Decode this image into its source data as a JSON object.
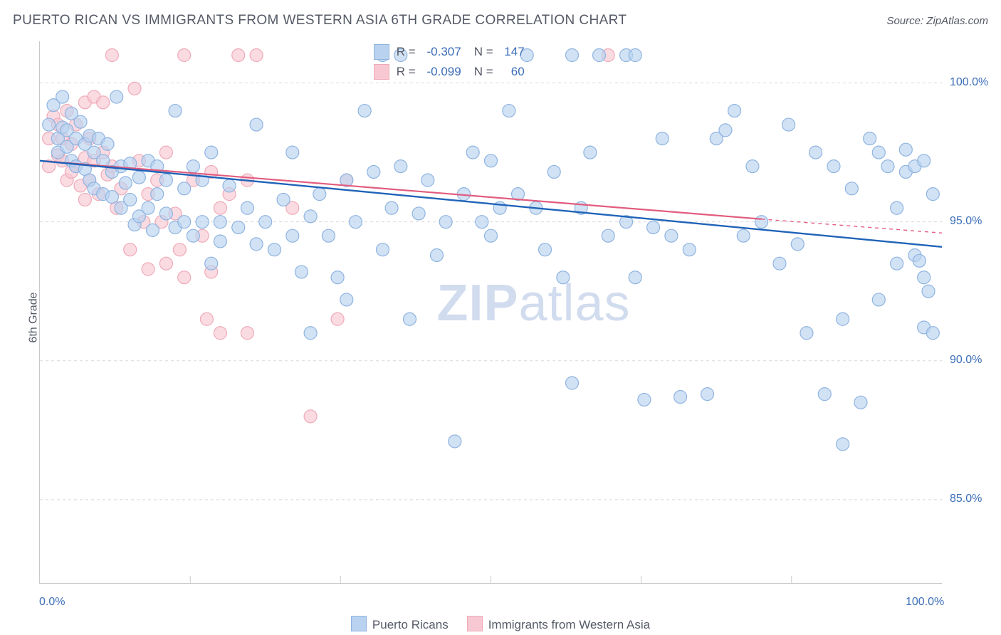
{
  "title": "PUERTO RICAN VS IMMIGRANTS FROM WESTERN ASIA 6TH GRADE CORRELATION CHART",
  "source": "Source: ZipAtlas.com",
  "yaxis_label": "6th Grade",
  "watermark_bold": "ZIP",
  "watermark_rest": "atlas",
  "chart": {
    "type": "scatter-with-regression",
    "xlim": [
      0,
      100
    ],
    "ylim": [
      82,
      101.5
    ],
    "x_ticks": [
      0,
      100
    ],
    "x_tick_labels": [
      "0.0%",
      "100.0%"
    ],
    "x_minor_ticks": [
      16.67,
      33.33,
      50,
      66.67,
      83.33
    ],
    "y_ticks": [
      85,
      90,
      95,
      100
    ],
    "y_tick_labels": [
      "85.0%",
      "90.0%",
      "95.0%",
      "100.0%"
    ],
    "gridline_color": "#d8d8d8",
    "gridline_dash": "4 4",
    "background_color": "#ffffff",
    "marker_radius": 9,
    "marker_stroke_width": 1.2,
    "series": [
      {
        "name": "Puerto Ricans",
        "fill": "#b9d2ef",
        "stroke": "#8fb4e0",
        "fill_opacity": 0.65,
        "R": "-0.307",
        "N": "147",
        "regression": {
          "x1": 0,
          "y1": 97.2,
          "x2": 100,
          "y2": 94.1,
          "color": "#1f63b8",
          "width": 2.4,
          "dash_ext": false
        },
        "points": [
          [
            1,
            98.5
          ],
          [
            1.5,
            99.2
          ],
          [
            2,
            98.0
          ],
          [
            2,
            97.5
          ],
          [
            2.5,
            98.4
          ],
          [
            2.5,
            99.5
          ],
          [
            3,
            98.3
          ],
          [
            3,
            97.7
          ],
          [
            3.5,
            98.9
          ],
          [
            3.5,
            97.2
          ],
          [
            4,
            98.0
          ],
          [
            4,
            97.0
          ],
          [
            4.5,
            98.6
          ],
          [
            5,
            97.8
          ],
          [
            5,
            96.9
          ],
          [
            5.5,
            98.1
          ],
          [
            5.5,
            96.5
          ],
          [
            6,
            97.5
          ],
          [
            6,
            96.2
          ],
          [
            6.5,
            98.0
          ],
          [
            7,
            97.2
          ],
          [
            7,
            96.0
          ],
          [
            7.5,
            97.8
          ],
          [
            8,
            96.8
          ],
          [
            8,
            95.9
          ],
          [
            8.5,
            99.5
          ],
          [
            9,
            97.0
          ],
          [
            9,
            95.5
          ],
          [
            9.5,
            96.4
          ],
          [
            10,
            97.1
          ],
          [
            10,
            95.8
          ],
          [
            10.5,
            94.9
          ],
          [
            11,
            96.6
          ],
          [
            11,
            95.2
          ],
          [
            12,
            97.2
          ],
          [
            12,
            95.5
          ],
          [
            12.5,
            94.7
          ],
          [
            13,
            96.0
          ],
          [
            13,
            97.0
          ],
          [
            14,
            95.3
          ],
          [
            14,
            96.5
          ],
          [
            15,
            99.0
          ],
          [
            15,
            94.8
          ],
          [
            16,
            96.2
          ],
          [
            16,
            95.0
          ],
          [
            17,
            97.0
          ],
          [
            17,
            94.5
          ],
          [
            18,
            96.5
          ],
          [
            18,
            95.0
          ],
          [
            19,
            97.5
          ],
          [
            19,
            93.5
          ],
          [
            20,
            95.0
          ],
          [
            20,
            94.3
          ],
          [
            21,
            96.3
          ],
          [
            22,
            94.8
          ],
          [
            23,
            95.5
          ],
          [
            24,
            94.2
          ],
          [
            24,
            98.5
          ],
          [
            25,
            95.0
          ],
          [
            26,
            94.0
          ],
          [
            27,
            95.8
          ],
          [
            28,
            94.5
          ],
          [
            28,
            97.5
          ],
          [
            29,
            93.2
          ],
          [
            30,
            95.2
          ],
          [
            30,
            91.0
          ],
          [
            31,
            96.0
          ],
          [
            32,
            94.5
          ],
          [
            33,
            93.0
          ],
          [
            34,
            92.2
          ],
          [
            34,
            96.5
          ],
          [
            35,
            95.0
          ],
          [
            36,
            99.0
          ],
          [
            37,
            96.8
          ],
          [
            38,
            94.0
          ],
          [
            38,
            101
          ],
          [
            39,
            95.5
          ],
          [
            40,
            97.0
          ],
          [
            40,
            101
          ],
          [
            41,
            91.5
          ],
          [
            42,
            95.3
          ],
          [
            43,
            96.5
          ],
          [
            44,
            93.8
          ],
          [
            45,
            95.0
          ],
          [
            46,
            87.1
          ],
          [
            47,
            96.0
          ],
          [
            48,
            97.5
          ],
          [
            49,
            95.0
          ],
          [
            50,
            94.5
          ],
          [
            50,
            97.2
          ],
          [
            51,
            95.5
          ],
          [
            52,
            99.0
          ],
          [
            53,
            96.0
          ],
          [
            54,
            101
          ],
          [
            55,
            95.5
          ],
          [
            56,
            94.0
          ],
          [
            57,
            96.8
          ],
          [
            58,
            93.0
          ],
          [
            59,
            89.2
          ],
          [
            59,
            101
          ],
          [
            60,
            95.5
          ],
          [
            61,
            97.5
          ],
          [
            62,
            101
          ],
          [
            63,
            94.5
          ],
          [
            65,
            95.0
          ],
          [
            65,
            101
          ],
          [
            66,
            101
          ],
          [
            66,
            93.0
          ],
          [
            67,
            88.6
          ],
          [
            68,
            94.8
          ],
          [
            69,
            98.0
          ],
          [
            70,
            94.5
          ],
          [
            71,
            88.7
          ],
          [
            72,
            94.0
          ],
          [
            74,
            88.8
          ],
          [
            75,
            98.0
          ],
          [
            76,
            98.3
          ],
          [
            77,
            99.0
          ],
          [
            78,
            94.5
          ],
          [
            79,
            97.0
          ],
          [
            80,
            95.0
          ],
          [
            82,
            93.5
          ],
          [
            83,
            98.5
          ],
          [
            84,
            94.2
          ],
          [
            85,
            91.0
          ],
          [
            86,
            97.5
          ],
          [
            87,
            88.8
          ],
          [
            88,
            97.0
          ],
          [
            89,
            91.5
          ],
          [
            89,
            87.0
          ],
          [
            90,
            96.2
          ],
          [
            91,
            88.5
          ],
          [
            92,
            98.0
          ],
          [
            93,
            97.5
          ],
          [
            93,
            92.2
          ],
          [
            94,
            97.0
          ],
          [
            95,
            95.5
          ],
          [
            95,
            93.5
          ],
          [
            96,
            97.6
          ],
          [
            96,
            96.8
          ],
          [
            97,
            97.0
          ],
          [
            97,
            93.8
          ],
          [
            97.5,
            93.6
          ],
          [
            98,
            97.2
          ],
          [
            98,
            93.0
          ],
          [
            98,
            91.2
          ],
          [
            98.5,
            92.5
          ],
          [
            99,
            96.0
          ],
          [
            99,
            91.0
          ]
        ]
      },
      {
        "name": "Immigrants from Western Asia",
        "fill": "#f7c8d2",
        "stroke": "#efaab8",
        "fill_opacity": 0.65,
        "R": "-0.099",
        "N": "60",
        "regression": {
          "x1": 0,
          "y1": 97.2,
          "x2": 80,
          "y2": 95.1,
          "color": "#e25c7e",
          "width": 2.2,
          "dash_ext": true,
          "x2_ext": 100,
          "y2_ext": 94.6
        },
        "points": [
          [
            1,
            98.0
          ],
          [
            1,
            97.0
          ],
          [
            1.5,
            98.8
          ],
          [
            2,
            97.4
          ],
          [
            2,
            98.5
          ],
          [
            2.5,
            98.0
          ],
          [
            2.5,
            97.2
          ],
          [
            3,
            99.0
          ],
          [
            3,
            96.5
          ],
          [
            3.5,
            97.8
          ],
          [
            3.5,
            96.8
          ],
          [
            4,
            98.5
          ],
          [
            4,
            97.0
          ],
          [
            4.5,
            96.3
          ],
          [
            5,
            97.3
          ],
          [
            5,
            95.8
          ],
          [
            5,
            99.3
          ],
          [
            5.5,
            98.0
          ],
          [
            5.5,
            96.5
          ],
          [
            6,
            99.5
          ],
          [
            6,
            97.2
          ],
          [
            6.5,
            96.0
          ],
          [
            7,
            99.3
          ],
          [
            7,
            97.5
          ],
          [
            7.5,
            96.7
          ],
          [
            8,
            101
          ],
          [
            8,
            97.0
          ],
          [
            8.5,
            95.5
          ],
          [
            9,
            96.2
          ],
          [
            10,
            94.0
          ],
          [
            10.5,
            99.8
          ],
          [
            11,
            97.2
          ],
          [
            11.5,
            95.0
          ],
          [
            12,
            96.0
          ],
          [
            12,
            93.3
          ],
          [
            13,
            96.5
          ],
          [
            13.5,
            95.0
          ],
          [
            14,
            97.5
          ],
          [
            14,
            93.5
          ],
          [
            15,
            95.3
          ],
          [
            15.5,
            94.0
          ],
          [
            16,
            101
          ],
          [
            16,
            93.0
          ],
          [
            17,
            96.5
          ],
          [
            18,
            94.5
          ],
          [
            18.5,
            91.5
          ],
          [
            19,
            96.8
          ],
          [
            19,
            93.2
          ],
          [
            20,
            95.5
          ],
          [
            20,
            91.0
          ],
          [
            21,
            96.0
          ],
          [
            22,
            101
          ],
          [
            23,
            96.5
          ],
          [
            23,
            91.0
          ],
          [
            24,
            101
          ],
          [
            28,
            95.5
          ],
          [
            30,
            88.0
          ],
          [
            33,
            91.5
          ],
          [
            34,
            96.5
          ],
          [
            63,
            101
          ]
        ]
      }
    ]
  },
  "legend": {
    "series1_label": "Puerto Ricans",
    "series2_label": "Immigrants from Western Asia"
  }
}
